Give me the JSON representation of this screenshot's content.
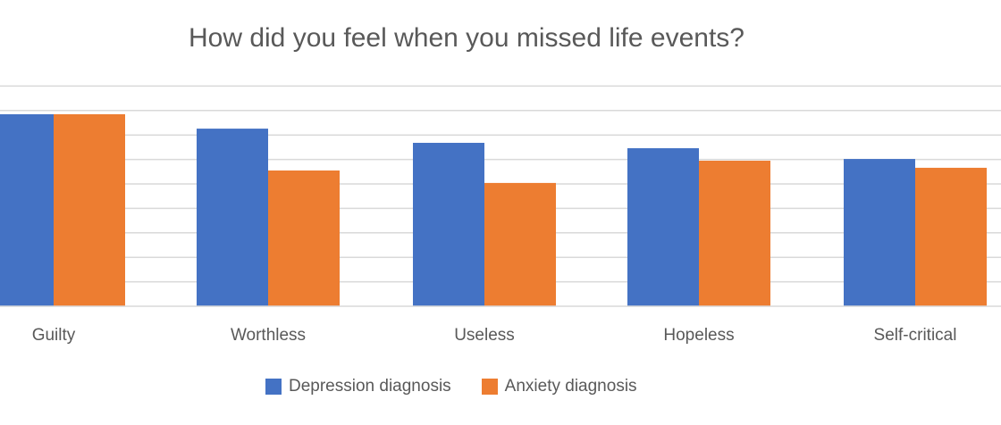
{
  "chart_data": {
    "type": "bar",
    "title": "How did you feel when you missed life events?",
    "categories": [
      "Guilty",
      "Worthless",
      "Useless",
      "Hopeless",
      "Self-critical"
    ],
    "series": [
      {
        "name": "Depression diagnosis",
        "color": "#4472C4",
        "values": [
          7.85,
          7.26,
          6.68,
          6.46,
          6.02
        ]
      },
      {
        "name": "Anxiety diagnosis",
        "color": "#ED7D31",
        "values": [
          7.85,
          5.55,
          5.04,
          5.95,
          5.66
        ]
      }
    ],
    "ylim": [
      0,
      9
    ],
    "grid": true,
    "legend": "bottom",
    "xlabel": "",
    "ylabel": ""
  }
}
